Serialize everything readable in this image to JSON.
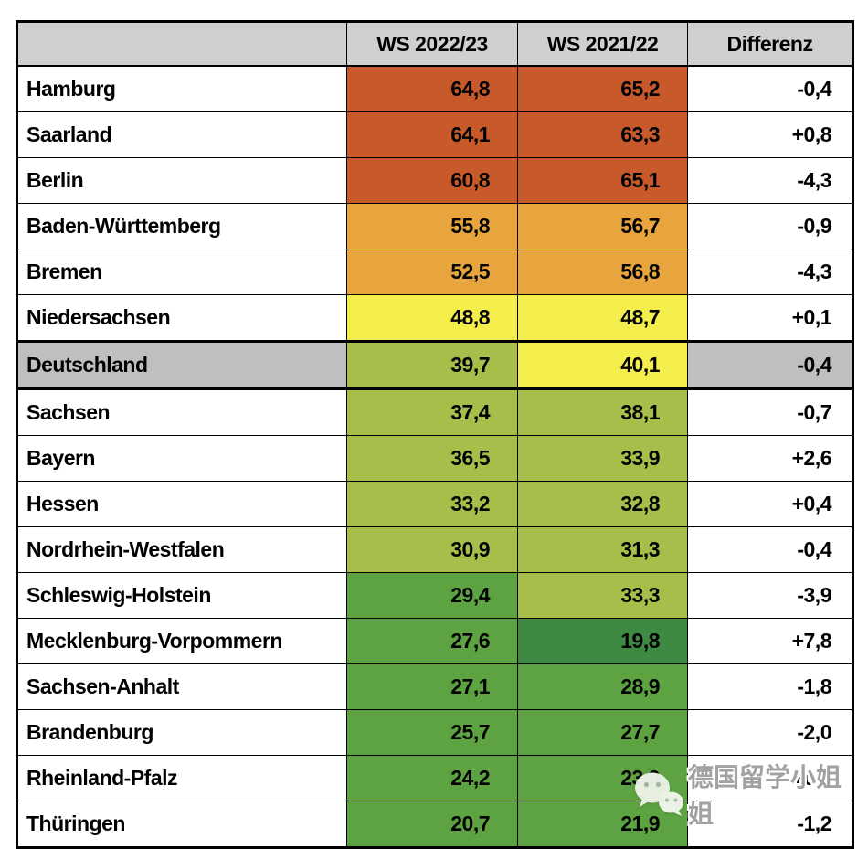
{
  "chart_data": {
    "type": "table",
    "columns": [
      "",
      "WS 2022/23",
      "WS 2021/22",
      "Differenz"
    ],
    "rows": [
      {
        "name": "Hamburg",
        "ws2022_23": "64,8",
        "ws2021_22": "65,2",
        "differenz": "-0,4",
        "c1": "dark_orange",
        "c2": "dark_orange",
        "highlight": false
      },
      {
        "name": "Saarland",
        "ws2022_23": "64,1",
        "ws2021_22": "63,3",
        "differenz": "+0,8",
        "c1": "dark_orange",
        "c2": "dark_orange",
        "highlight": false
      },
      {
        "name": "Berlin",
        "ws2022_23": "60,8",
        "ws2021_22": "65,1",
        "differenz": "-4,3",
        "c1": "dark_orange",
        "c2": "dark_orange",
        "highlight": false
      },
      {
        "name": "Baden-Württemberg",
        "ws2022_23": "55,8",
        "ws2021_22": "56,7",
        "differenz": "-0,9",
        "c1": "light_orange",
        "c2": "light_orange",
        "highlight": false
      },
      {
        "name": "Bremen",
        "ws2022_23": "52,5",
        "ws2021_22": "56,8",
        "differenz": "-4,3",
        "c1": "light_orange",
        "c2": "light_orange",
        "highlight": false
      },
      {
        "name": "Niedersachsen",
        "ws2022_23": "48,8",
        "ws2021_22": "48,7",
        "differenz": "+0,1",
        "c1": "yellow",
        "c2": "yellow",
        "highlight": false
      },
      {
        "name": "Deutschland",
        "ws2022_23": "39,7",
        "ws2021_22": "40,1",
        "differenz": "-0,4",
        "c1": "yellow_green",
        "c2": "yellow",
        "highlight": true
      },
      {
        "name": "Sachsen",
        "ws2022_23": "37,4",
        "ws2021_22": "38,1",
        "differenz": "-0,7",
        "c1": "yellow_green",
        "c2": "yellow_green",
        "highlight": false
      },
      {
        "name": "Bayern",
        "ws2022_23": "36,5",
        "ws2021_22": "33,9",
        "differenz": "+2,6",
        "c1": "yellow_green",
        "c2": "yellow_green",
        "highlight": false
      },
      {
        "name": "Hessen",
        "ws2022_23": "33,2",
        "ws2021_22": "32,8",
        "differenz": "+0,4",
        "c1": "yellow_green",
        "c2": "yellow_green",
        "highlight": false
      },
      {
        "name": "Nordrhein-Westfalen",
        "ws2022_23": "30,9",
        "ws2021_22": "31,3",
        "differenz": "-0,4",
        "c1": "yellow_green",
        "c2": "yellow_green",
        "highlight": false
      },
      {
        "name": "Schleswig-Holstein",
        "ws2022_23": "29,4",
        "ws2021_22": "33,3",
        "differenz": "-3,9",
        "c1": "mid_green",
        "c2": "yellow_green",
        "highlight": false
      },
      {
        "name": "Mecklenburg-Vorpommern",
        "ws2022_23": "27,6",
        "ws2021_22": "19,8",
        "differenz": "+7,8",
        "c1": "mid_green",
        "c2": "dark_green",
        "highlight": false
      },
      {
        "name": "Sachsen-Anhalt",
        "ws2022_23": "27,1",
        "ws2021_22": "28,9",
        "differenz": "-1,8",
        "c1": "mid_green",
        "c2": "mid_green",
        "highlight": false
      },
      {
        "name": "Brandenburg",
        "ws2022_23": "25,7",
        "ws2021_22": "27,7",
        "differenz": "-2,0",
        "c1": "mid_green",
        "c2": "mid_green",
        "highlight": false
      },
      {
        "name": "Rheinland-Pfalz",
        "ws2022_23": "24,2",
        "ws2021_22": "23,9",
        "differenz": "+0,3",
        "c1": "mid_green",
        "c2": "mid_green",
        "highlight": false
      },
      {
        "name": "Thüringen",
        "ws2022_23": "20,7",
        "ws2021_22": "21,9",
        "differenz": "-1,2",
        "c1": "mid_green",
        "c2": "mid_green",
        "highlight": false
      }
    ],
    "layout_hints": {
      "heatmap_columns": [
        "WS 2022/23",
        "WS 2021/22"
      ],
      "highlighted_row": "Deutschland"
    }
  },
  "colors": {
    "dark_orange": "#c7592b",
    "light_orange": "#e8a43d",
    "yellow": "#f4ee4d",
    "yellow_green": "#a7bf4a",
    "mid_green": "#5da342",
    "dark_green": "#3f8a43",
    "header_gray": "#d0d0d0",
    "row_highlight_gray": "#bfbfbf",
    "border_black": "#000000"
  },
  "watermark": {
    "icon": "wechat-icon",
    "text": "德国留学小姐姐"
  }
}
